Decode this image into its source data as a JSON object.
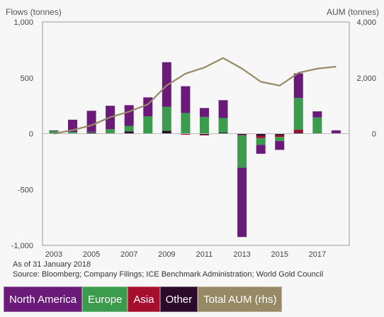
{
  "chart_data": {
    "type": "bar",
    "ylabel_left": "Flows (tonnes)",
    "ylabel_right": "AUM (tonnes)",
    "ylim_left": [
      -1000,
      1000
    ],
    "ylim_right": [
      -4000,
      4000
    ],
    "yticks_left": [
      "1,000",
      "500",
      "0",
      "-500",
      "-1,000"
    ],
    "yticks_right": [
      "4,000",
      "2,000",
      "0"
    ],
    "x": [
      2003,
      2004,
      2005,
      2006,
      2007,
      2008,
      2009,
      2010,
      2011,
      2012,
      2013,
      2014,
      2015,
      2016,
      2017,
      2018
    ],
    "xtick_labels": [
      "2003",
      "2005",
      "2007",
      "2009",
      "2011",
      "2013",
      "2015",
      "2017"
    ],
    "grid": false,
    "series": [
      {
        "name": "North America",
        "color": "#6a1b7a",
        "values": [
          5,
          110,
          190,
          210,
          185,
          170,
          400,
          240,
          80,
          160,
          -620,
          -80,
          -80,
          220,
          55,
          25
        ]
      },
      {
        "name": "Europe",
        "color": "#3a9c4c",
        "values": [
          25,
          15,
          5,
          35,
          50,
          155,
          215,
          185,
          150,
          130,
          -290,
          -60,
          -35,
          285,
          140,
          0
        ]
      },
      {
        "name": "Asia",
        "color": "#a50f2d",
        "values": [
          0,
          0,
          0,
          0,
          0,
          0,
          0,
          -10,
          -5,
          0,
          -5,
          -20,
          -15,
          25,
          0,
          0
        ]
      },
      {
        "name": "Other",
        "color": "#2b0a2b",
        "values": [
          0,
          0,
          10,
          5,
          20,
          0,
          25,
          0,
          -10,
          10,
          -10,
          -20,
          -15,
          10,
          5,
          5
        ]
      },
      {
        "name": "Total AUM (rhs)",
        "type": "line",
        "color": "#968964",
        "values": [
          0,
          130,
          300,
          590,
          790,
          1050,
          1730,
          2150,
          2370,
          2710,
          2330,
          1860,
          1720,
          2180,
          2330,
          2400
        ]
      }
    ]
  },
  "notes": {
    "as_of": "As of 31 January 2018",
    "source": "Source: Bloomberg; Company Filings; ICE Benchmark Administration; World Gold Council"
  },
  "legend": [
    {
      "label": "North America",
      "color": "#6a1b7a"
    },
    {
      "label": "Europe",
      "color": "#3a9c4c"
    },
    {
      "label": "Asia",
      "color": "#a50f2d"
    },
    {
      "label": "Other",
      "color": "#2b0a2b"
    },
    {
      "label": "Total AUM (rhs)",
      "color": "#968964"
    }
  ]
}
